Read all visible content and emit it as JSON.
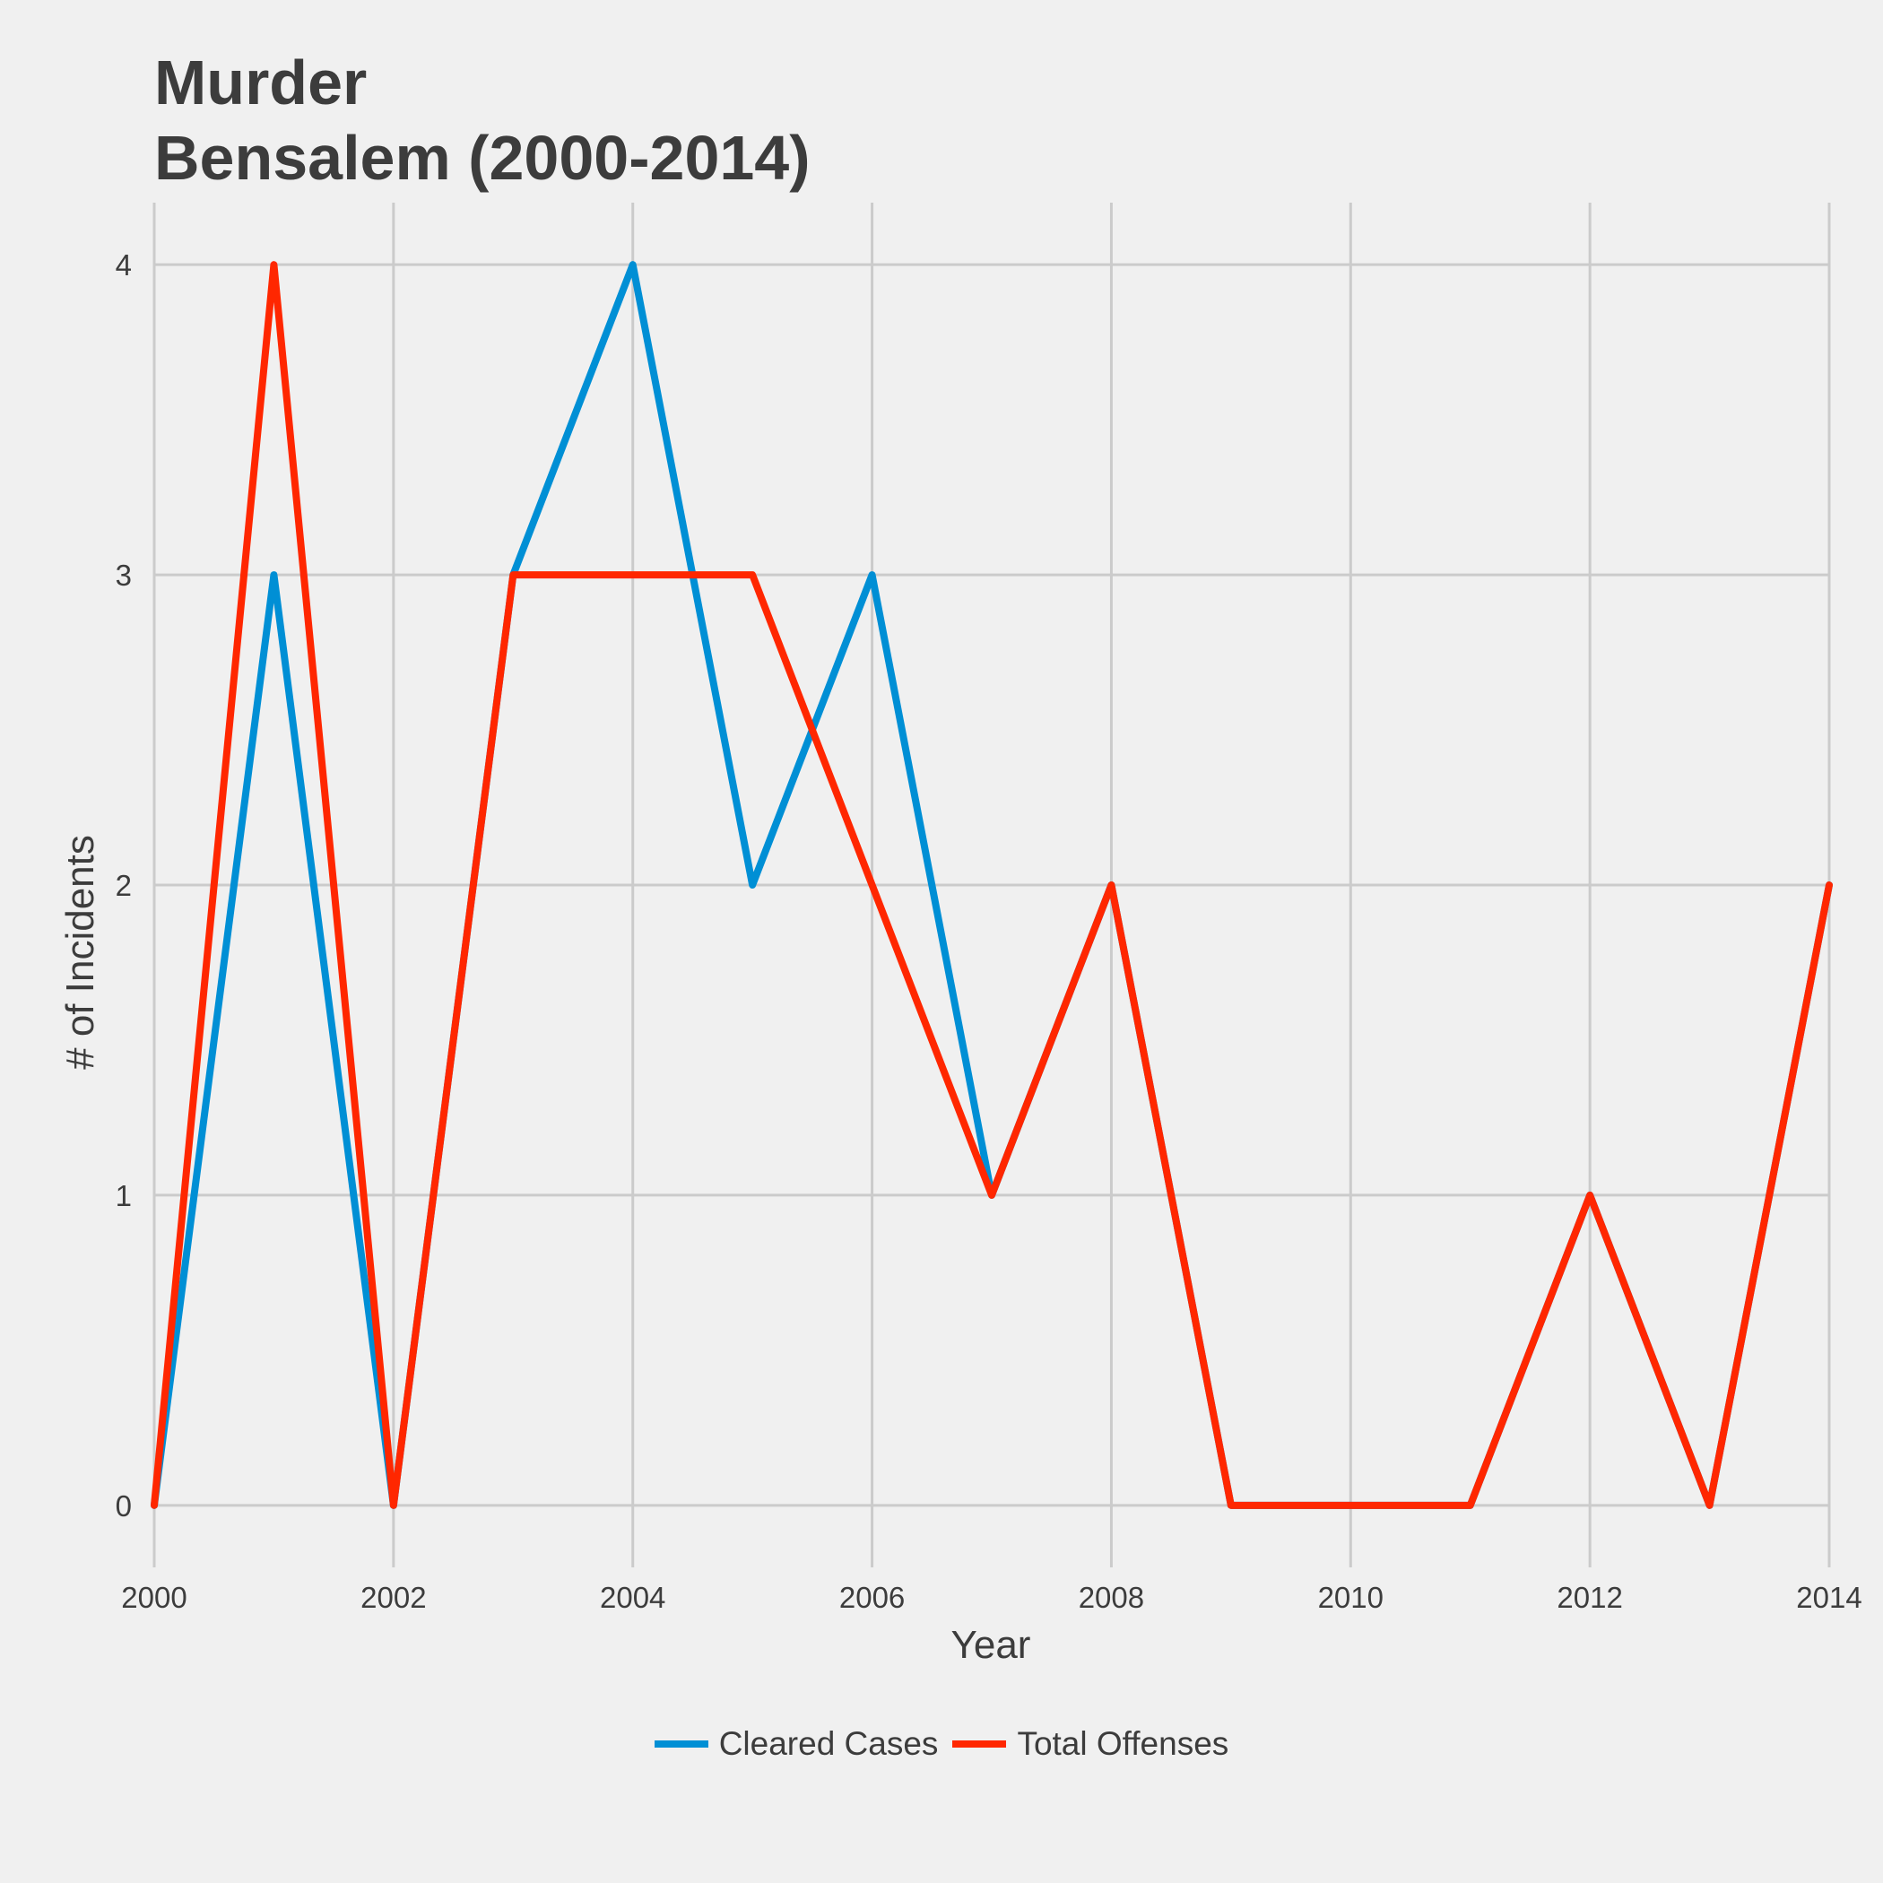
{
  "chart_data": {
    "type": "line",
    "title_lines": [
      "Murder",
      "Bensalem (2000-2014)"
    ],
    "xlabel": "Year",
    "ylabel": "# of Incidents",
    "x": [
      2000,
      2001,
      2002,
      2003,
      2004,
      2005,
      2006,
      2007,
      2008,
      2009,
      2010,
      2011,
      2012,
      2013,
      2014
    ],
    "xlim": [
      2000,
      2014
    ],
    "ylim": [
      -0.2,
      4.2
    ],
    "x_ticks": [
      2000,
      2002,
      2004,
      2006,
      2008,
      2010,
      2012,
      2014
    ],
    "y_ticks": [
      0,
      1,
      2,
      3,
      4
    ],
    "grid": true,
    "legend_position": "bottom",
    "series": [
      {
        "name": "Cleared Cases",
        "color": "#008fd5",
        "values": [
          0,
          3,
          0,
          3,
          4,
          2,
          3,
          1,
          2,
          0,
          0,
          0,
          1,
          0,
          2
        ]
      },
      {
        "name": "Total Offenses",
        "color": "#ff2700",
        "values": [
          0,
          4,
          0,
          3,
          3,
          3,
          2,
          1,
          2,
          0,
          0,
          0,
          1,
          0,
          2
        ]
      }
    ]
  }
}
